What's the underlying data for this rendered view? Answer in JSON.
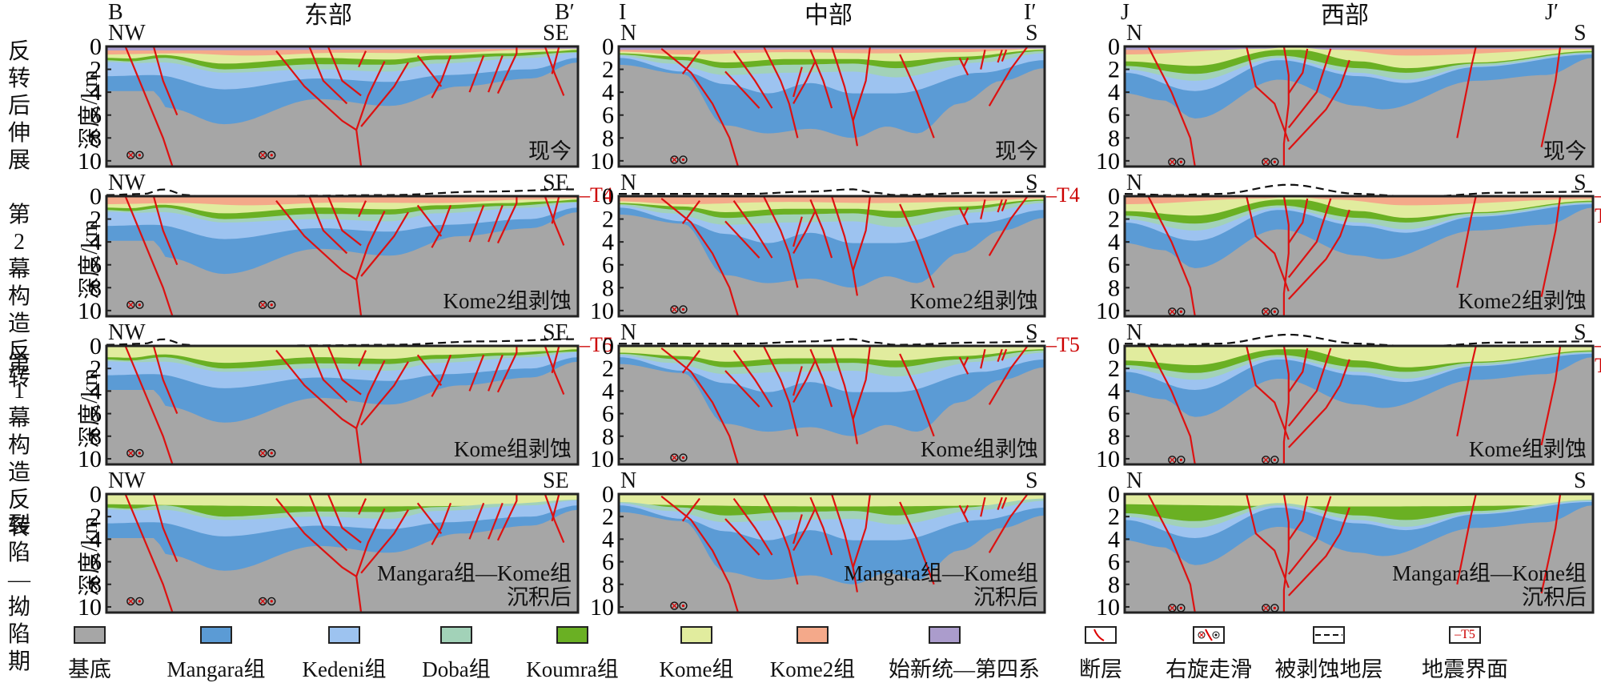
{
  "columns": [
    {
      "title": "东部",
      "start": "B",
      "end": "B′"
    },
    {
      "title": "中部",
      "start": "I",
      "end": "I′"
    },
    {
      "title": "西部",
      "start": "J",
      "end": "J′"
    }
  ],
  "rows": [
    {
      "stage": "反转后伸展",
      "caption": [
        "现今",
        "现今",
        "现今"
      ],
      "directions": [
        [
          "NW",
          "SE"
        ],
        [
          "N",
          "S"
        ],
        [
          "N",
          "S"
        ]
      ],
      "horizon_marker": null
    },
    {
      "stage": "第2幕构造反转",
      "caption": [
        "Kome2组剥蚀",
        "Kome2组剥蚀",
        "Kome2组剥蚀"
      ],
      "directions": [
        [
          "NW",
          "SE"
        ],
        [
          "N",
          "S"
        ],
        [
          "N",
          "S"
        ]
      ],
      "horizon_marker": "T4"
    },
    {
      "stage": "第1幕构造反转",
      "caption": [
        "Kome组剥蚀",
        "Kome组剥蚀",
        "Kome组剥蚀"
      ],
      "directions": [
        [
          "NW",
          "SE"
        ],
        [
          "N",
          "S"
        ],
        [
          "N",
          "S"
        ]
      ],
      "horizon_marker": "T5"
    },
    {
      "stage": "裂陷—拗陷期",
      "caption": [
        "Mangara组—Kome组\n沉积后",
        "Mangara组—Kome组\n沉积后",
        "Mangara组—Kome组\n沉积后"
      ],
      "directions": [
        [
          "NW",
          "SE"
        ],
        [
          "N",
          "S"
        ],
        [
          "N",
          "S"
        ]
      ],
      "horizon_marker": null
    }
  ],
  "axis": {
    "title": "深度/km",
    "ticks": [
      "0",
      "2",
      "4",
      "6",
      "8",
      "10"
    ],
    "min": 0,
    "max": 10.5
  },
  "stage_label_lines": [
    [
      "反",
      "转",
      "后",
      "伸",
      "展"
    ],
    [
      "第2",
      "幕构",
      "造反",
      "转"
    ],
    [
      "第1",
      "幕构",
      "造反",
      "转"
    ],
    [
      "裂陷",
      "—拗",
      "陷期"
    ]
  ],
  "legend": [
    {
      "label": "基底",
      "color": "#a6a6a6",
      "kind": "fill"
    },
    {
      "label": "Mangara组",
      "color": "#5b9bd5",
      "kind": "fill"
    },
    {
      "label": "Kedeni组",
      "color": "#9dc3f0",
      "kind": "fill"
    },
    {
      "label": "Doba组",
      "color": "#a2d2b8",
      "kind": "fill"
    },
    {
      "label": "Koumra组",
      "color": "#6ab023",
      "kind": "fill"
    },
    {
      "label": "Kome组",
      "color": "#e1ec9e",
      "kind": "fill"
    },
    {
      "label": "Kome2组",
      "color": "#f4a98a",
      "kind": "fill"
    },
    {
      "label": "始新统—第四系",
      "color": "#ab9ccc",
      "kind": "fill"
    },
    {
      "label": "断层",
      "kind": "fault"
    },
    {
      "label": "右旋走滑",
      "kind": "strike-slip"
    },
    {
      "label": "被剥蚀地层",
      "kind": "eroded"
    },
    {
      "label": "地震界面",
      "kind": "seismic",
      "marker": "T5"
    }
  ],
  "colors": {
    "fault": "#dd1111",
    "marker_text": "#cc0000",
    "frame": "#222222"
  }
}
